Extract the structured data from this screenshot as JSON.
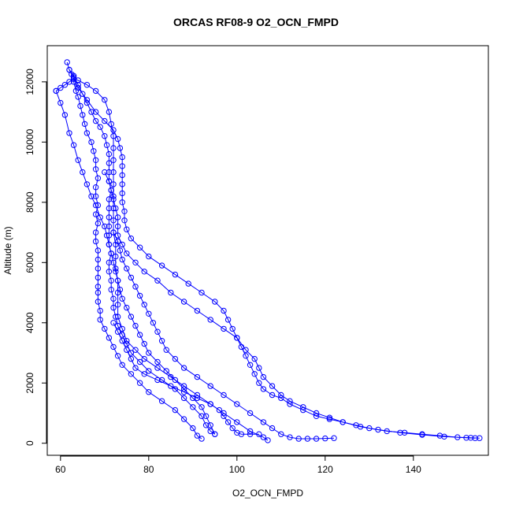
{
  "chart_data": {
    "type": "scatter",
    "title": "ORCAS RF08-9 O2_OCN_FMPD",
    "xlabel": "O2_OCN_FMPD",
    "ylabel": "Altitude (m)",
    "xlim": [
      57,
      157
    ],
    "ylim": [
      -400,
      13200
    ],
    "xticks": [
      60,
      80,
      100,
      120,
      140
    ],
    "yticks": [
      0,
      2000,
      4000,
      6000,
      8000,
      10000,
      12000
    ],
    "color": "#0000ff",
    "marker": "open-circle",
    "connected": true,
    "series": [
      {
        "name": "",
        "points": [
          [
            61.5,
            12650
          ],
          [
            62,
            12400
          ],
          [
            62.5,
            12250
          ],
          [
            63,
            12150
          ],
          [
            63,
            12000
          ],
          [
            63.5,
            11700
          ],
          [
            64,
            11500
          ],
          [
            64.5,
            11200
          ],
          [
            65,
            10900
          ],
          [
            65.5,
            10600
          ],
          [
            66,
            10300
          ],
          [
            67,
            10000
          ],
          [
            67.5,
            9700
          ],
          [
            68,
            9400
          ],
          [
            68,
            9100
          ],
          [
            68.5,
            8800
          ],
          [
            68,
            8500
          ],
          [
            68,
            8200
          ],
          [
            68.5,
            7900
          ],
          [
            68,
            7600
          ],
          [
            68.5,
            7300
          ],
          [
            68,
            7000
          ],
          [
            68,
            6700
          ],
          [
            68.5,
            6400
          ],
          [
            68.5,
            6100
          ],
          [
            68.5,
            5800
          ],
          [
            68.5,
            5500
          ],
          [
            68.5,
            5200
          ],
          [
            68.5,
            5000
          ],
          [
            68.5,
            4700
          ],
          [
            69,
            4400
          ],
          [
            69,
            4100
          ],
          [
            70,
            3800
          ],
          [
            71,
            3500
          ],
          [
            72,
            3200
          ],
          [
            73,
            2900
          ],
          [
            74,
            2600
          ],
          [
            76,
            2300
          ],
          [
            78,
            2000
          ],
          [
            80,
            1700
          ],
          [
            83,
            1400
          ],
          [
            86,
            1100
          ],
          [
            88,
            800
          ],
          [
            90,
            500
          ],
          [
            91,
            250
          ],
          [
            92,
            150
          ]
        ]
      },
      {
        "name": "",
        "points": [
          [
            62,
            12400
          ],
          [
            63,
            12200
          ],
          [
            64,
            11900
          ],
          [
            65,
            11600
          ],
          [
            66,
            11300
          ],
          [
            67,
            11000
          ],
          [
            68,
            10700
          ],
          [
            69,
            10500
          ],
          [
            70,
            10200
          ],
          [
            70.5,
            9900
          ],
          [
            71,
            9600
          ],
          [
            71,
            9300
          ],
          [
            71,
            9000
          ],
          [
            71,
            8700
          ],
          [
            71.5,
            8400
          ],
          [
            71,
            8100
          ],
          [
            71,
            7800
          ],
          [
            71,
            7500
          ],
          [
            71,
            7200
          ],
          [
            71,
            6900
          ],
          [
            71,
            6600
          ],
          [
            71.5,
            6300
          ],
          [
            71,
            6000
          ],
          [
            71,
            5700
          ],
          [
            71.5,
            5400
          ],
          [
            71.5,
            5100
          ],
          [
            72,
            4800
          ],
          [
            72,
            4500
          ],
          [
            72.5,
            4200
          ],
          [
            73,
            3900
          ],
          [
            74,
            3600
          ],
          [
            75,
            3300
          ],
          [
            76,
            3000
          ],
          [
            78,
            2700
          ],
          [
            80,
            2400
          ],
          [
            83,
            2100
          ],
          [
            86,
            1800
          ],
          [
            88,
            1500
          ],
          [
            90,
            1200
          ],
          [
            92,
            900
          ],
          [
            93,
            600
          ],
          [
            94,
            400
          ],
          [
            95,
            300
          ]
        ]
      },
      {
        "name": "",
        "points": [
          [
            59,
            11700
          ],
          [
            60,
            11800
          ],
          [
            61,
            11900
          ],
          [
            62,
            12000
          ],
          [
            63,
            12100
          ],
          [
            64,
            12050
          ],
          [
            66,
            11900
          ],
          [
            68,
            11700
          ],
          [
            70,
            11400
          ],
          [
            71,
            11000
          ],
          [
            71.5,
            10600
          ],
          [
            72,
            10200
          ],
          [
            72,
            9800
          ],
          [
            72,
            9400
          ],
          [
            72,
            9000
          ],
          [
            72,
            8600
          ],
          [
            72,
            8200
          ],
          [
            72,
            7800
          ],
          [
            72,
            7400
          ],
          [
            72,
            7000
          ],
          [
            72.5,
            6600
          ],
          [
            72.5,
            6200
          ],
          [
            72.5,
            5800
          ],
          [
            73,
            5400
          ],
          [
            73,
            5000
          ],
          [
            73,
            4600
          ],
          [
            73,
            4200
          ],
          [
            74,
            3800
          ],
          [
            75,
            3400
          ],
          [
            77,
            3100
          ],
          [
            79,
            2800
          ],
          [
            82,
            2500
          ],
          [
            85,
            2200
          ],
          [
            88,
            1900
          ],
          [
            91,
            1600
          ],
          [
            94,
            1300
          ],
          [
            97,
            1000
          ],
          [
            100,
            700
          ],
          [
            103,
            400
          ],
          [
            106,
            200
          ],
          [
            107,
            100
          ]
        ]
      },
      {
        "name": "",
        "points": [
          [
            59,
            11700
          ],
          [
            60,
            11300
          ],
          [
            61,
            10900
          ],
          [
            62,
            10300
          ],
          [
            63,
            9900
          ],
          [
            64,
            9400
          ],
          [
            65,
            9000
          ],
          [
            66,
            8600
          ],
          [
            67,
            8200
          ],
          [
            68,
            7900
          ],
          [
            69,
            7500
          ],
          [
            70,
            7200
          ],
          [
            70.5,
            6900
          ],
          [
            71,
            6600
          ],
          [
            71.5,
            6300
          ],
          [
            72,
            6000
          ],
          [
            72.5,
            5700
          ],
          [
            73,
            5400
          ],
          [
            73.5,
            5100
          ],
          [
            74,
            4800
          ],
          [
            75,
            4500
          ],
          [
            76,
            4200
          ],
          [
            77,
            3900
          ],
          [
            78,
            3600
          ],
          [
            79,
            3300
          ],
          [
            80,
            3000
          ],
          [
            82,
            2700
          ],
          [
            84,
            2400
          ],
          [
            86,
            2100
          ],
          [
            88,
            1800
          ],
          [
            90,
            1500
          ],
          [
            92,
            1200
          ],
          [
            93,
            900
          ],
          [
            94,
            600
          ],
          [
            95,
            300
          ]
        ]
      },
      {
        "name": "",
        "points": [
          [
            63,
            12100
          ],
          [
            64,
            11800
          ],
          [
            66,
            11400
          ],
          [
            68,
            11000
          ],
          [
            70,
            10700
          ],
          [
            72,
            10400
          ],
          [
            73,
            10100
          ],
          [
            73.5,
            9800
          ],
          [
            74,
            9500
          ],
          [
            74,
            9200
          ],
          [
            74,
            8900
          ],
          [
            74,
            8600
          ],
          [
            74,
            8300
          ],
          [
            74,
            8000
          ],
          [
            74.5,
            7700
          ],
          [
            74.5,
            7400
          ],
          [
            75,
            7100
          ],
          [
            76,
            6800
          ],
          [
            78,
            6500
          ],
          [
            80,
            6200
          ],
          [
            83,
            5900
          ],
          [
            86,
            5600
          ],
          [
            89,
            5300
          ],
          [
            92,
            5000
          ],
          [
            95,
            4700
          ],
          [
            97,
            4400
          ],
          [
            98,
            4100
          ],
          [
            99,
            3800
          ],
          [
            100,
            3500
          ],
          [
            101,
            3200
          ],
          [
            102,
            2900
          ],
          [
            103,
            2600
          ],
          [
            104,
            2300
          ],
          [
            105,
            2000
          ],
          [
            106,
            1800
          ],
          [
            108,
            1600
          ],
          [
            110,
            1500
          ],
          [
            112,
            1300
          ],
          [
            115,
            1100
          ],
          [
            118,
            900
          ],
          [
            121,
            800
          ],
          [
            124,
            700
          ],
          [
            127,
            600
          ],
          [
            130,
            500
          ],
          [
            134,
            400
          ],
          [
            138,
            350
          ],
          [
            142,
            300
          ],
          [
            146,
            250
          ],
          [
            150,
            200
          ],
          [
            153,
            180
          ],
          [
            155,
            170
          ]
        ]
      },
      {
        "name": "",
        "points": [
          [
            70,
            9000
          ],
          [
            71,
            8700
          ],
          [
            71.5,
            8400
          ],
          [
            72,
            8100
          ],
          [
            72.5,
            7800
          ],
          [
            73,
            7500
          ],
          [
            73,
            7200
          ],
          [
            73,
            6900
          ],
          [
            74,
            6600
          ],
          [
            75,
            6300
          ],
          [
            77,
            6000
          ],
          [
            79,
            5700
          ],
          [
            82,
            5400
          ],
          [
            85,
            5000
          ],
          [
            88,
            4700
          ],
          [
            91,
            4400
          ],
          [
            94,
            4100
          ],
          [
            97,
            3800
          ],
          [
            100,
            3500
          ],
          [
            102,
            3100
          ],
          [
            104,
            2800
          ],
          [
            105,
            2500
          ],
          [
            106,
            2200
          ],
          [
            108,
            1900
          ],
          [
            110,
            1600
          ],
          [
            112,
            1400
          ],
          [
            115,
            1200
          ],
          [
            118,
            1000
          ],
          [
            121,
            850
          ],
          [
            124,
            700
          ],
          [
            128,
            550
          ],
          [
            132,
            450
          ],
          [
            137,
            350
          ],
          [
            142,
            280
          ],
          [
            147,
            220
          ],
          [
            152,
            180
          ],
          [
            154,
            170
          ]
        ]
      },
      {
        "name": "",
        "points": [
          [
            72,
            7000
          ],
          [
            73,
            6700
          ],
          [
            73.5,
            6400
          ],
          [
            74,
            6100
          ],
          [
            75,
            5800
          ],
          [
            76,
            5500
          ],
          [
            77,
            5200
          ],
          [
            78,
            4900
          ],
          [
            79,
            4600
          ],
          [
            80,
            4300
          ],
          [
            81,
            4000
          ],
          [
            82,
            3700
          ],
          [
            83,
            3400
          ],
          [
            84,
            3100
          ],
          [
            86,
            2800
          ],
          [
            88,
            2500
          ],
          [
            91,
            2200
          ],
          [
            94,
            1900
          ],
          [
            97,
            1600
          ],
          [
            100,
            1300
          ],
          [
            103,
            1000
          ],
          [
            106,
            700
          ],
          [
            108,
            500
          ],
          [
            110,
            300
          ],
          [
            112,
            200
          ],
          [
            114,
            150
          ],
          [
            116,
            150
          ],
          [
            118,
            150
          ],
          [
            120,
            160
          ],
          [
            122,
            170
          ]
        ]
      },
      {
        "name": "",
        "points": [
          [
            72,
            4000
          ],
          [
            73,
            3700
          ],
          [
            74,
            3400
          ],
          [
            75,
            3100
          ],
          [
            76,
            2800
          ],
          [
            77,
            2500
          ],
          [
            79,
            2300
          ],
          [
            82,
            2100
          ],
          [
            85,
            1900
          ],
          [
            88,
            1700
          ],
          [
            91,
            1500
          ],
          [
            94,
            1300
          ],
          [
            96,
            1100
          ],
          [
            97,
            900
          ],
          [
            98,
            700
          ],
          [
            99,
            500
          ],
          [
            100,
            350
          ],
          [
            101,
            300
          ],
          [
            103,
            300
          ],
          [
            105,
            300
          ]
        ]
      }
    ]
  }
}
